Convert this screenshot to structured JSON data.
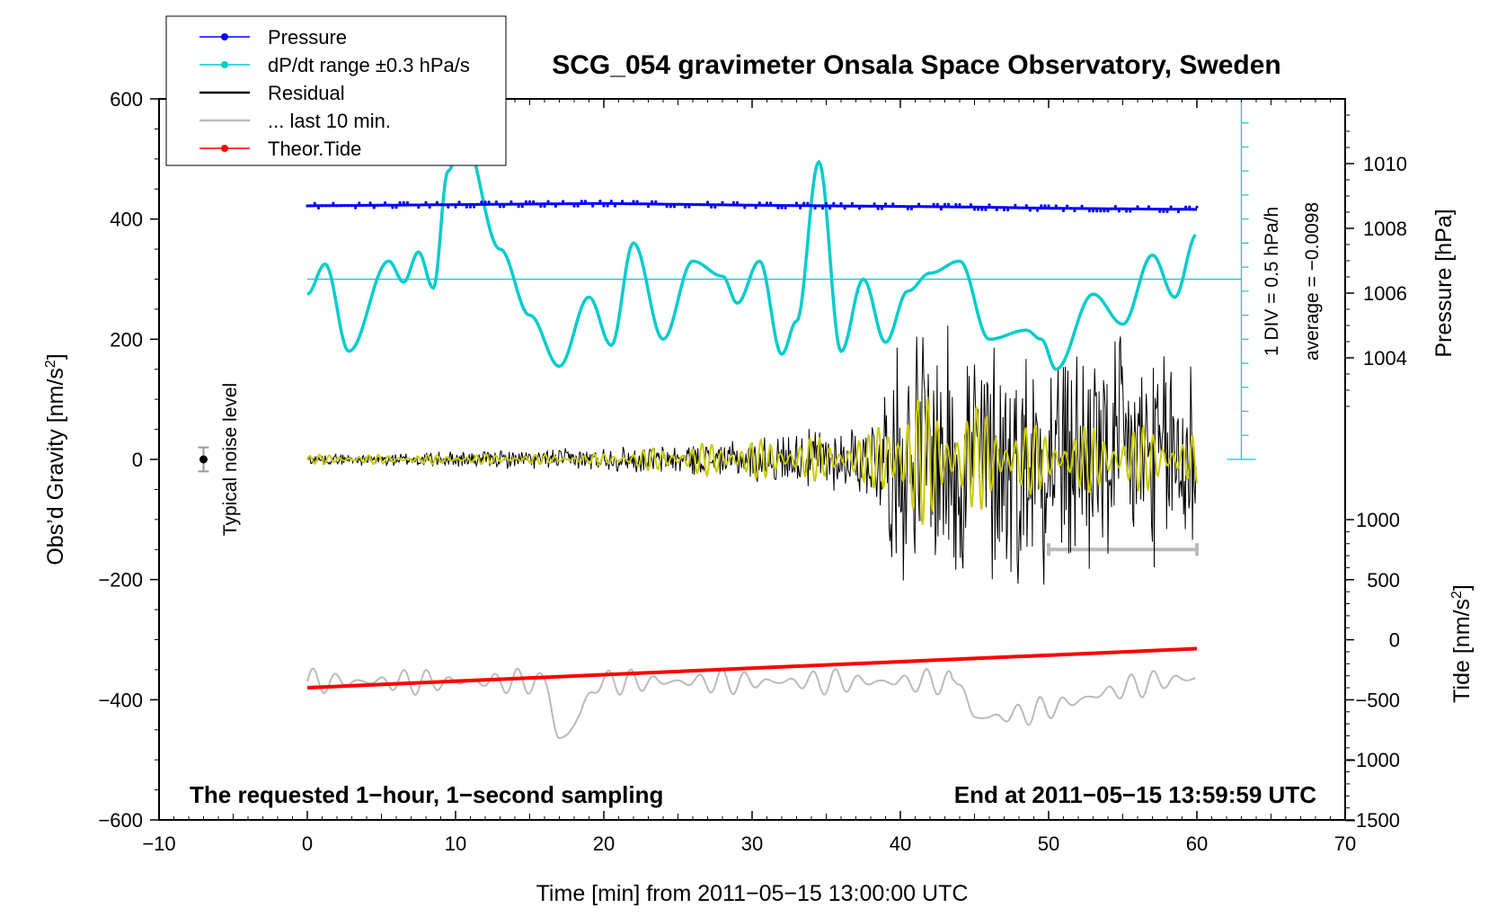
{
  "chart_data": {
    "type": "line",
    "title": "SCG_054 gravimeter Onsala Space Observatory, Sweden",
    "xlabel": "Time [min] from 2011−05−15 13:00:00 UTC",
    "xlim": [
      -10,
      70
    ],
    "x_ticks": [
      -10,
      0,
      10,
      20,
      30,
      40,
      50,
      60,
      70
    ],
    "x_tick_labels": [
      "−10",
      "0",
      "10",
      "20",
      "30",
      "40",
      "50",
      "60",
      "70"
    ],
    "left_axis": {
      "label": "Obs’d Gravity [nm/s²]",
      "label_text": "Obs’d Gravity [nm/s",
      "label_sup": "2",
      "label_end": "]",
      "ylim": [
        -600,
        600
      ],
      "ticks": [
        -600,
        -400,
        -200,
        0,
        200,
        400,
        600
      ],
      "tick_labels": [
        "−600",
        "−400",
        "−200",
        "0",
        "200",
        "400",
        "600"
      ]
    },
    "pressure_axis": {
      "label": "Pressure [hPa]",
      "range": [
        1002,
        1012
      ],
      "ticks": [
        1004,
        1006,
        1008,
        1010
      ],
      "tick_labels": [
        "1004",
        "1006",
        "1008",
        "1010"
      ]
    },
    "tide_axis": {
      "label": "Tide [nm/s²]",
      "label_text": "Tide [nm/s",
      "label_sup": "2",
      "label_end": "]",
      "range": [
        -1500,
        1000
      ],
      "ticks": [
        -1500,
        -1000,
        -500,
        0,
        500,
        1000
      ],
      "tick_labels": [
        "−1500",
        "−1000",
        "−500",
        "0",
        "500",
        "1000"
      ]
    },
    "dpdt_scale": {
      "label_div": "1 DIV = 0.5 hPa/h",
      "label_avg": "average = −0.0098"
    },
    "noise_label": "Typical noise level",
    "noise_level": {
      "x": -7,
      "value": 0,
      "error": 20
    },
    "annotation_left": "The requested 1−hour, 1−second sampling",
    "annotation_right": "End at 2011−05−15 13:59:59 UTC",
    "legend": [
      {
        "label": "Pressure",
        "color": "#0000ff",
        "marker": true
      },
      {
        "label": "dP/dt range ±0.3 hPa/s",
        "color": "#00cccc",
        "marker": true
      },
      {
        "label": "Residual",
        "color": "#000000",
        "marker": false
      },
      {
        "label": "... last 10 min.",
        "color": "#bbbbbb",
        "marker": false
      },
      {
        "label": "Theor.Tide",
        "color": "#ff0000",
        "marker": true
      }
    ],
    "series": [
      {
        "name": "Pressure",
        "color": "#0000ff",
        "axis": "left",
        "x": [
          0,
          10,
          20,
          30,
          40,
          45,
          50,
          55,
          60
        ],
        "values": [
          422,
          424,
          426,
          423,
          421,
          420,
          418,
          417,
          416
        ]
      },
      {
        "name": "dP/dt range ±0.3 hPa/s",
        "color": "#00cccc",
        "axis": "left",
        "reference_level": 300,
        "x": [
          0,
          1.2,
          2.8,
          5.5,
          6.5,
          7.5,
          8.5,
          9.5,
          10.5,
          13,
          15,
          17,
          19,
          20.5,
          22,
          24,
          26,
          28,
          29,
          30.5,
          32,
          33,
          34.5,
          36,
          37.5,
          39,
          40.5,
          42,
          44,
          46,
          48.5,
          49.5,
          50.5,
          53,
          55,
          57,
          58.5,
          60
        ],
        "values": [
          275,
          325,
          180,
          330,
          295,
          345,
          285,
          480,
          540,
          350,
          240,
          155,
          270,
          190,
          360,
          200,
          330,
          305,
          260,
          330,
          175,
          230,
          495,
          180,
          300,
          195,
          280,
          310,
          330,
          200,
          215,
          200,
          150,
          275,
          225,
          340,
          270,
          375
        ]
      },
      {
        "name": "Residual",
        "color": "#000000",
        "axis": "left",
        "x": [
          0,
          19,
          28,
          38,
          40,
          45,
          50,
          55,
          60
        ],
        "envelope": [
          8,
          20,
          30,
          70,
          220,
          240,
          210,
          220,
          200
        ]
      },
      {
        "name": "Residual (filtered)",
        "color": "#cccc00",
        "axis": "left",
        "x": [
          0,
          19,
          28,
          38,
          39.5,
          45,
          50,
          55,
          60
        ],
        "envelope": [
          8,
          8,
          30,
          40,
          120,
          90,
          50,
          60,
          40
        ]
      },
      {
        "name": "... last 10 min.",
        "color": "#bbbbbb",
        "axis": "left",
        "level": -150,
        "x_range": [
          50,
          60
        ],
        "curve_x": [
          0,
          16,
          17,
          20,
          44,
          45,
          60
        ],
        "curve_values": [
          -370,
          -370,
          -465,
          -370,
          -370,
          -430,
          -365
        ]
      },
      {
        "name": "Theor.Tide",
        "color": "#ff0000",
        "axis": "left",
        "x": [
          0,
          60
        ],
        "values": [
          -380,
          -315
        ]
      }
    ]
  }
}
